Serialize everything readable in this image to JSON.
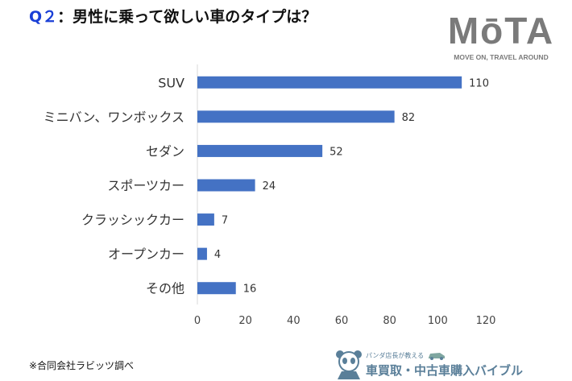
{
  "title": {
    "prefix": "Q２",
    "text": "：男性に乗って欲しい車のタイプは？"
  },
  "logo": {
    "name": "MōTA",
    "tagline": "MOVE ON, TRAVEL AROUND"
  },
  "footnote": "※合同会社ラビッツ調べ",
  "brand": {
    "subtitle": "パンダ店長が教える",
    "name": "車買取・中古車購入バイブル"
  },
  "chart_data": {
    "type": "bar",
    "orientation": "horizontal",
    "categories": [
      "SUV",
      "ミニバン、ワンボックス",
      "セダン",
      "スポーツカー",
      "クラッシックカー",
      "オープンカー",
      "その他"
    ],
    "values": [
      110,
      82,
      52,
      24,
      7,
      4,
      16
    ],
    "xlim": [
      0,
      120
    ],
    "xticks": [
      0,
      20,
      40,
      60,
      80,
      100,
      120
    ],
    "grid": false,
    "bar_color": "#4472c4",
    "data_labels": true
  }
}
